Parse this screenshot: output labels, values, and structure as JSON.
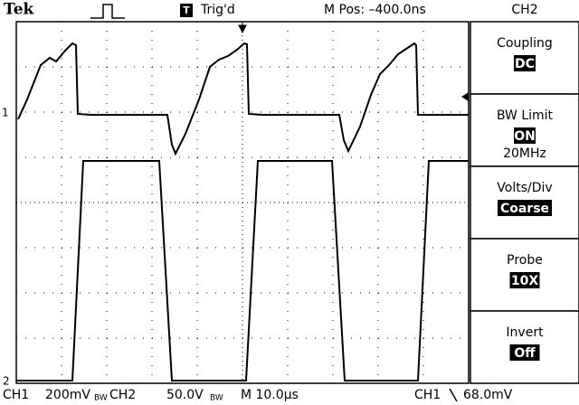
{
  "header": {
    "brand": "Tek",
    "trigger_icon": "T",
    "trigger_status": "Trig'd",
    "position": "M Pos: –400.0ns",
    "channel": "CH2"
  },
  "markers": {
    "ch1": "1",
    "ch2": "2"
  },
  "menu": [
    {
      "label": "Coupling",
      "value": "DC"
    },
    {
      "label": "BW Limit",
      "value": "ON",
      "extra": "20MHz"
    },
    {
      "label": "Volts/Div",
      "value": "Coarse"
    },
    {
      "label": "Probe",
      "value": "10X"
    },
    {
      "label": "Invert",
      "value": "Off"
    }
  ],
  "status": {
    "ch1": "CH1",
    "ch1_scale": "200mV",
    "ch1_bw": "BW",
    "ch2": "CH2",
    "ch2_scale": "50.0V",
    "ch2_bw": "BW",
    "timebase": "M 10.0µs",
    "trigger_source": "CH1",
    "trigger_level": "68.0mV"
  }
}
